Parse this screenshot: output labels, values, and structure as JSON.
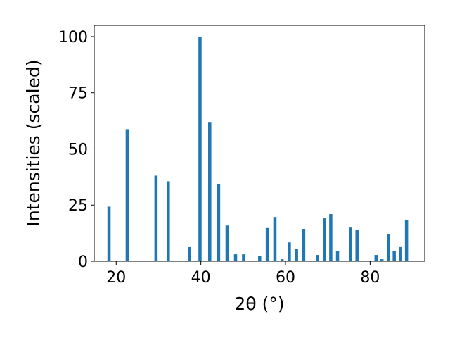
{
  "chart_data": {
    "type": "bar",
    "xlabel": "2θ (°)",
    "ylabel": "Intensities (scaled)",
    "xlim": [
      14.8,
      92.9
    ],
    "ylim": [
      0,
      105
    ],
    "xticks": [
      20,
      40,
      60,
      80
    ],
    "yticks": [
      0,
      25,
      50,
      75,
      100
    ],
    "bar_color": "#1f77b4",
    "bar_width": 0.75,
    "grid": false,
    "points": [
      {
        "x": 18.3,
        "y": 24.3
      },
      {
        "x": 22.6,
        "y": 58.8
      },
      {
        "x": 29.4,
        "y": 38.1
      },
      {
        "x": 32.3,
        "y": 35.6
      },
      {
        "x": 37.3,
        "y": 6.3
      },
      {
        "x": 39.8,
        "y": 100
      },
      {
        "x": 42.1,
        "y": 62.0
      },
      {
        "x": 44.2,
        "y": 34.3
      },
      {
        "x": 46.2,
        "y": 15.9
      },
      {
        "x": 48.2,
        "y": 3.1
      },
      {
        "x": 50.1,
        "y": 3.1
      },
      {
        "x": 53.9,
        "y": 2.2
      },
      {
        "x": 55.7,
        "y": 14.8
      },
      {
        "x": 57.5,
        "y": 19.7
      },
      {
        "x": 59.2,
        "y": 0.9
      },
      {
        "x": 60.9,
        "y": 8.4
      },
      {
        "x": 62.6,
        "y": 5.6
      },
      {
        "x": 64.3,
        "y": 14.4
      },
      {
        "x": 67.6,
        "y": 2.8
      },
      {
        "x": 69.2,
        "y": 19.1
      },
      {
        "x": 70.7,
        "y": 21.0
      },
      {
        "x": 72.3,
        "y": 4.7
      },
      {
        "x": 75.4,
        "y": 15.0
      },
      {
        "x": 76.9,
        "y": 14.1
      },
      {
        "x": 79.9,
        "y": 0.3
      },
      {
        "x": 81.4,
        "y": 2.8
      },
      {
        "x": 82.8,
        "y": 0.9
      },
      {
        "x": 84.3,
        "y": 12.2
      },
      {
        "x": 85.7,
        "y": 4.4
      },
      {
        "x": 87.2,
        "y": 6.3
      },
      {
        "x": 88.6,
        "y": 18.5
      }
    ]
  }
}
